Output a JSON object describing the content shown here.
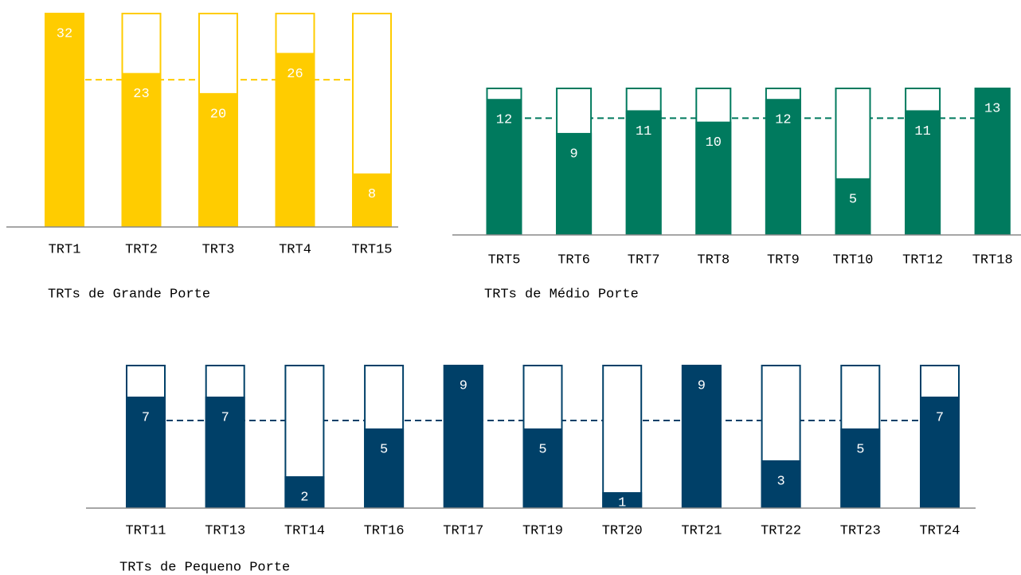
{
  "chart_data": [
    {
      "type": "bar",
      "xlabel": "TRTs de Grande Porte",
      "categories": [
        "TRT1",
        "TRT2",
        "TRT3",
        "TRT4",
        "TRT15"
      ],
      "values": [
        32,
        23,
        20,
        26,
        8
      ],
      "color": "#ffcc00",
      "ylim": [
        0,
        32
      ],
      "reference": 22
    },
    {
      "type": "bar",
      "xlabel": "TRTs de Médio Porte",
      "categories": [
        "TRT5",
        "TRT6",
        "TRT7",
        "TRT8",
        "TRT9",
        "TRT10",
        "TRT12",
        "TRT18"
      ],
      "values": [
        12,
        9,
        11,
        10,
        12,
        5,
        11,
        13
      ],
      "color": "#007a5e",
      "ylim": [
        0,
        13
      ],
      "reference": 10.3
    },
    {
      "type": "bar",
      "xlabel": "TRTs de Pequeno Porte",
      "categories": [
        "TRT11",
        "TRT13",
        "TRT14",
        "TRT16",
        "TRT17",
        "TRT19",
        "TRT20",
        "TRT21",
        "TRT22",
        "TRT23",
        "TRT24"
      ],
      "values": [
        7,
        7,
        2,
        5,
        9,
        5,
        1,
        9,
        3,
        5,
        7
      ],
      "color": "#004068",
      "ylim": [
        0,
        9
      ],
      "reference": 5.5
    }
  ]
}
